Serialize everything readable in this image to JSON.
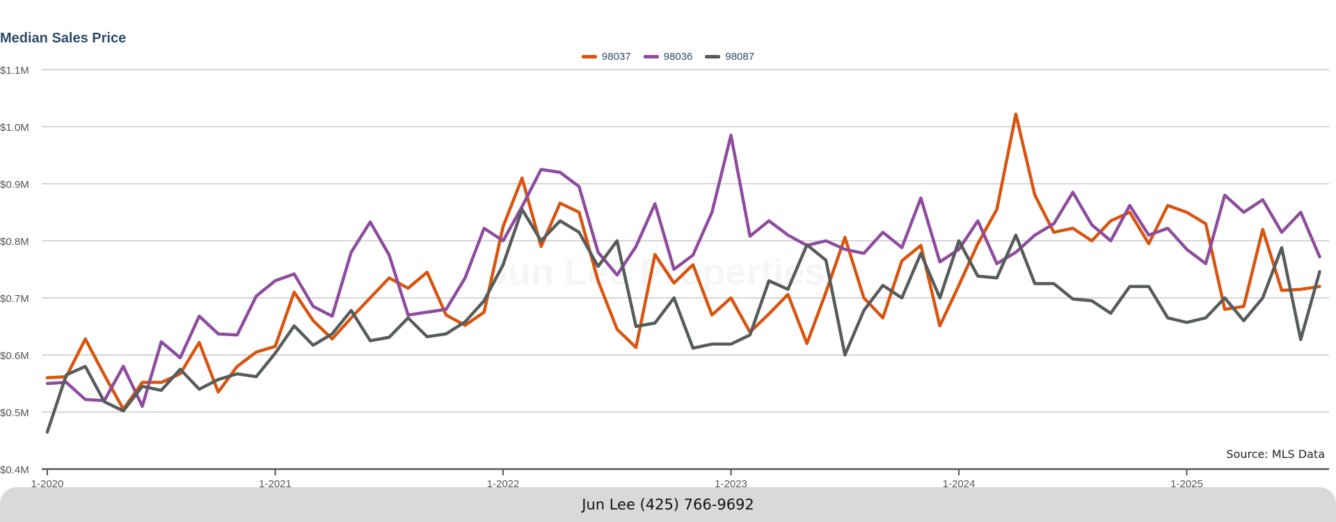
{
  "header": {
    "title": "Median Sales Price"
  },
  "watermark": "Jun Lee Properties",
  "source_note": "Source: MLS Data",
  "footer": {
    "contact": "Jun Lee (425) 766-9692"
  },
  "colors": {
    "98037": "#d9540f",
    "98036": "#8e4c9e",
    "98087": "#565c5c",
    "grid": "#c8c8c8",
    "axis": "#555555"
  },
  "chart_data": {
    "type": "line",
    "title": "Median Sales Price",
    "xlabel": "",
    "ylabel": "",
    "x_tick_labels": [
      "1-2020",
      "1-2021",
      "1-2022",
      "1-2023",
      "1-2024",
      "1-2025"
    ],
    "y_tick_labels": [
      "$0.4M",
      "$0.5M",
      "$0.6M",
      "$0.7M",
      "$0.8M",
      "$0.9M",
      "$1.0M",
      "$1.1M"
    ],
    "y_ticks": [
      0.4,
      0.5,
      0.6,
      0.7,
      0.8,
      0.9,
      1.0,
      1.1
    ],
    "ylim": [
      0.4,
      1.1
    ],
    "x_start": "2020-01",
    "grid": true,
    "legend_position": "top-center",
    "series": [
      {
        "name": "98037",
        "color": "#d9540f",
        "values": [
          0.56,
          0.562,
          0.628,
          0.565,
          0.505,
          0.552,
          0.552,
          0.567,
          0.622,
          0.535,
          0.58,
          0.605,
          0.615,
          0.71,
          0.66,
          0.628,
          0.665,
          0.7,
          0.735,
          0.717,
          0.745,
          0.67,
          0.652,
          0.675,
          0.825,
          0.91,
          0.79,
          0.866,
          0.85,
          0.73,
          0.645,
          0.613,
          0.776,
          0.726,
          0.758,
          0.67,
          0.7,
          0.64,
          0.672,
          0.706,
          0.62,
          0.71,
          0.806,
          0.7,
          0.665,
          0.765,
          0.792,
          0.651,
          0.722,
          0.795,
          0.855,
          1.022,
          0.88,
          0.815,
          0.822,
          0.8,
          0.835,
          0.85,
          0.795,
          0.862,
          0.85,
          0.83,
          0.68,
          0.685,
          0.82,
          0.713,
          0.715,
          0.72
        ]
      },
      {
        "name": "98036",
        "color": "#8e4c9e",
        "values": [
          0.55,
          0.552,
          0.522,
          0.52,
          0.58,
          0.51,
          0.623,
          0.595,
          0.668,
          0.637,
          0.635,
          0.703,
          0.73,
          0.742,
          0.685,
          0.668,
          0.78,
          0.833,
          0.775,
          0.67,
          0.675,
          0.68,
          0.735,
          0.822,
          0.8,
          0.86,
          0.925,
          0.92,
          0.895,
          0.78,
          0.74,
          0.79,
          0.865,
          0.75,
          0.775,
          0.85,
          0.985,
          0.808,
          0.835,
          0.81,
          0.792,
          0.8,
          0.785,
          0.778,
          0.815,
          0.788,
          0.875,
          0.763,
          0.785,
          0.835,
          0.76,
          0.78,
          0.81,
          0.83,
          0.885,
          0.828,
          0.8,
          0.862,
          0.81,
          0.822,
          0.785,
          0.76,
          0.88,
          0.85,
          0.872,
          0.815,
          0.85,
          0.772
        ]
      },
      {
        "name": "98087",
        "color": "#565c5c",
        "values": [
          0.465,
          0.565,
          0.58,
          0.518,
          0.502,
          0.545,
          0.538,
          0.575,
          0.54,
          0.557,
          0.567,
          0.562,
          0.603,
          0.651,
          0.617,
          0.637,
          0.678,
          0.625,
          0.631,
          0.665,
          0.632,
          0.637,
          0.658,
          0.695,
          0.758,
          0.855,
          0.8,
          0.835,
          0.815,
          0.755,
          0.8,
          0.65,
          0.656,
          0.7,
          0.612,
          0.619,
          0.619,
          0.635,
          0.73,
          0.715,
          0.793,
          0.766,
          0.6,
          0.678,
          0.722,
          0.7,
          0.778,
          0.7,
          0.8,
          0.738,
          0.735,
          0.81,
          0.725,
          0.725,
          0.698,
          0.695,
          0.673,
          0.72,
          0.72,
          0.665,
          0.657,
          0.665,
          0.7,
          0.66,
          0.7,
          0.788,
          0.627,
          0.746
        ]
      }
    ]
  }
}
